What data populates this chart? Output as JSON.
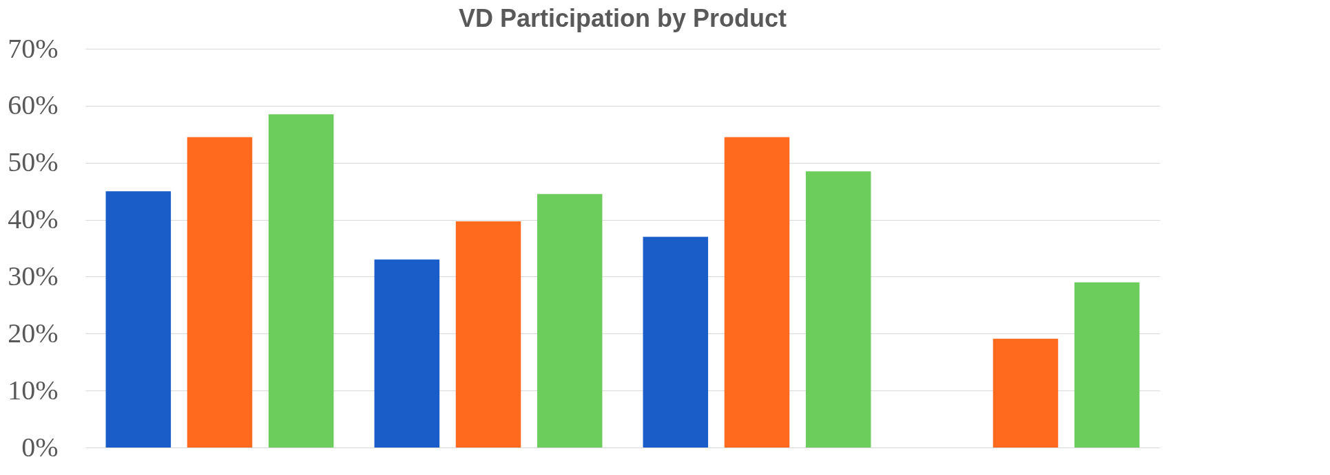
{
  "chart_data": {
    "type": "bar",
    "title": "VD Participation by Product",
    "categories": [
      null,
      null,
      null,
      null
    ],
    "series": [
      {
        "color": "#1a5cc8",
        "values": [
          0.45,
          0.33,
          0.37,
          null
        ]
      },
      {
        "color": "#ff6a1e",
        "values": [
          0.545,
          0.397,
          0.545,
          0.191
        ]
      },
      {
        "color": "#6ccc5c",
        "values": [
          0.585,
          0.445,
          0.485,
          0.29
        ]
      }
    ],
    "ylim": [
      0,
      0.7
    ],
    "yticks": [
      {
        "value": 0,
        "label": "0%"
      },
      {
        "value": 0.1,
        "label": "10%"
      },
      {
        "value": 0.2,
        "label": "20%"
      },
      {
        "value": 0.3,
        "label": "30%"
      },
      {
        "value": 0.4,
        "label": "40%"
      },
      {
        "value": 0.5,
        "label": "50%"
      },
      {
        "value": 0.6,
        "label": "60%"
      },
      {
        "value": 0.7,
        "label": "70%"
      }
    ],
    "grid": "y",
    "legend": false
  }
}
